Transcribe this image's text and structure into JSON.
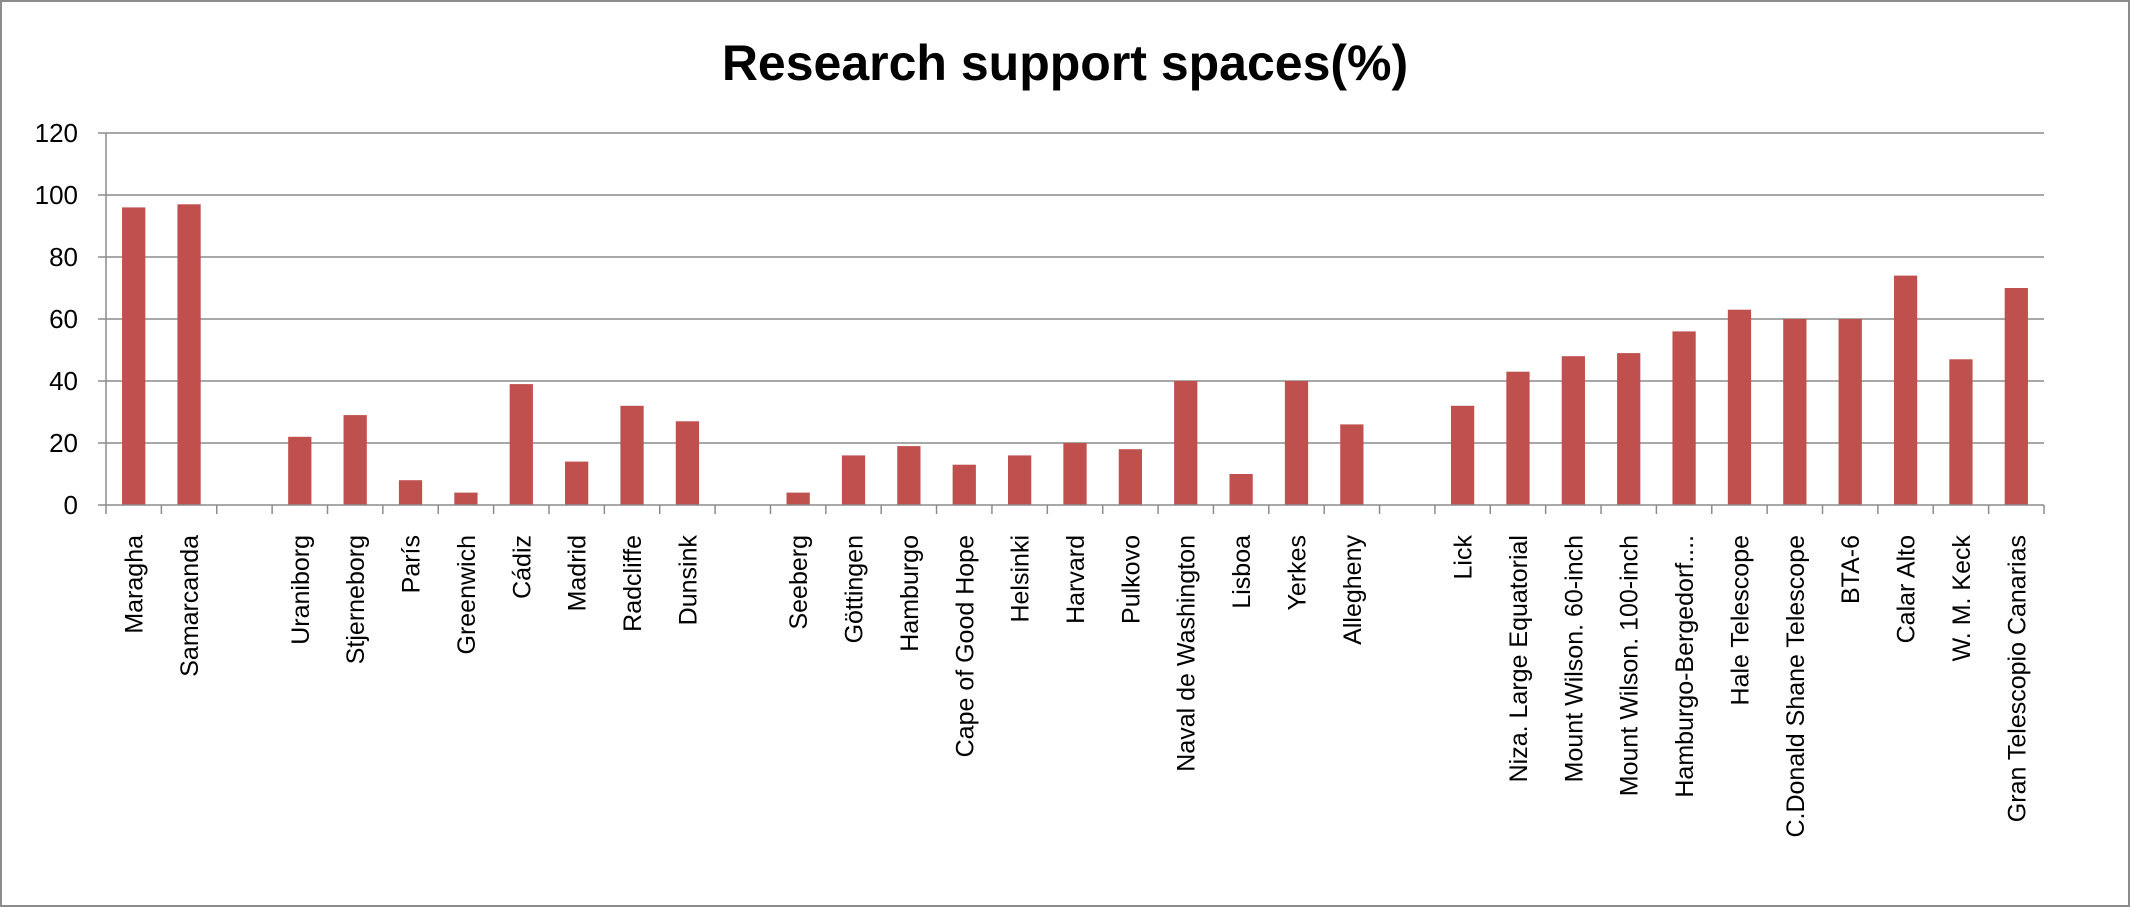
{
  "chart_data": {
    "type": "bar",
    "title": "Research support spaces(%)",
    "xlabel": "",
    "ylabel": "",
    "ylim": [
      0,
      120
    ],
    "yticks": [
      0,
      20,
      40,
      60,
      80,
      100,
      120
    ],
    "grid": true,
    "legend": "none",
    "bar_color": "#c0504d",
    "categories": [
      "Maragha",
      "Samarcanda",
      "",
      "Uraniborg",
      "Stjerneborg",
      "París",
      "Greenwich",
      "Cádiz",
      "Madrid",
      "Radcliffe",
      "Dunsink",
      "",
      "Seeberg",
      "Göttingen",
      "Hamburgo",
      "Cape of Good Hope",
      "Helsinki",
      "Harvard",
      "Pulkovo",
      "Naval de Washington",
      "Lisboa",
      "Yerkes",
      "Allegheny",
      "",
      "Lick",
      "Niza. Large Equatorial",
      "Mount Wilson. 60-inch",
      "Mount Wilson. 100-inch",
      "Hamburgo-Bergedorf....",
      "Hale Telescope",
      "C.Donald Shane Telescope",
      "BTA-6",
      "Calar Alto",
      "W. M. Keck",
      "Gran Telescopio Canarias"
    ],
    "values": [
      96,
      97,
      null,
      22,
      29,
      8,
      4,
      39,
      14,
      32,
      27,
      null,
      4,
      16,
      19,
      13,
      16,
      20,
      18,
      40,
      10,
      40,
      26,
      null,
      32,
      43,
      48,
      49,
      56,
      63,
      60,
      60,
      74,
      47,
      70
    ]
  }
}
